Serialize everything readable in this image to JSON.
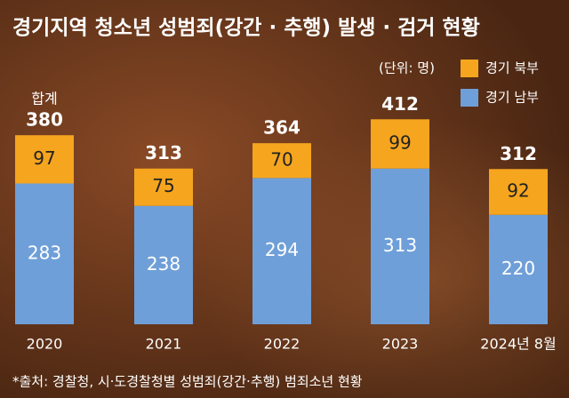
{
  "chart_data": {
    "type": "stacked_bar",
    "title": "경기지역 청소년 성범죄(강간 · 추행) 발생 · 검거 현황",
    "unit": "(단위: 명)",
    "source": "*출처: 경찰청, 시·도경찰청별 성범죄(강간·추행) 범죄소년 현황",
    "categories": [
      "2020",
      "2021",
      "2022",
      "2023",
      "2024년 8월"
    ],
    "series": [
      {
        "name": "경기 남부",
        "color": "#6f9fd8",
        "values": [
          283,
          238,
          294,
          313,
          220
        ]
      },
      {
        "name": "경기 북부",
        "color": "#f5a51e",
        "values": [
          97,
          75,
          70,
          99,
          92
        ]
      }
    ],
    "total_label": "합계",
    "totals": [
      380,
      313,
      364,
      412,
      312
    ]
  }
}
